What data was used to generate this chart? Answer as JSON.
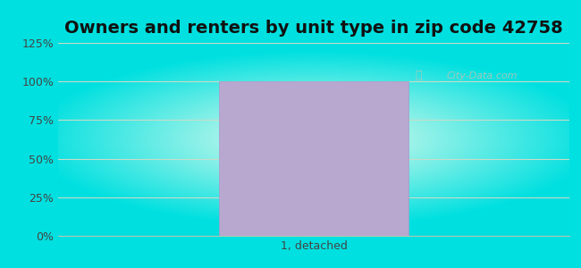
{
  "title": "Owners and renters by unit type in zip code 42758",
  "categories": [
    "1, detached"
  ],
  "values": [
    100
  ],
  "bar_color": "#b8a8d0",
  "bar_edge_color": "#a898c8",
  "ylim_max": 125,
  "yticks": [
    0,
    25,
    50,
    75,
    100,
    125
  ],
  "ytick_labels": [
    "0%",
    "25%",
    "50%",
    "75%",
    "100%",
    "125%"
  ],
  "title_fontsize": 14,
  "tick_fontsize": 9,
  "fig_bg_color": "#00e0e0",
  "watermark_text": "City-Data.com",
  "watermark_color": "#b0c8b8",
  "grid_color": "#c8dcc8",
  "bar_width": 0.52,
  "xlim": [
    -0.7,
    0.7
  ]
}
